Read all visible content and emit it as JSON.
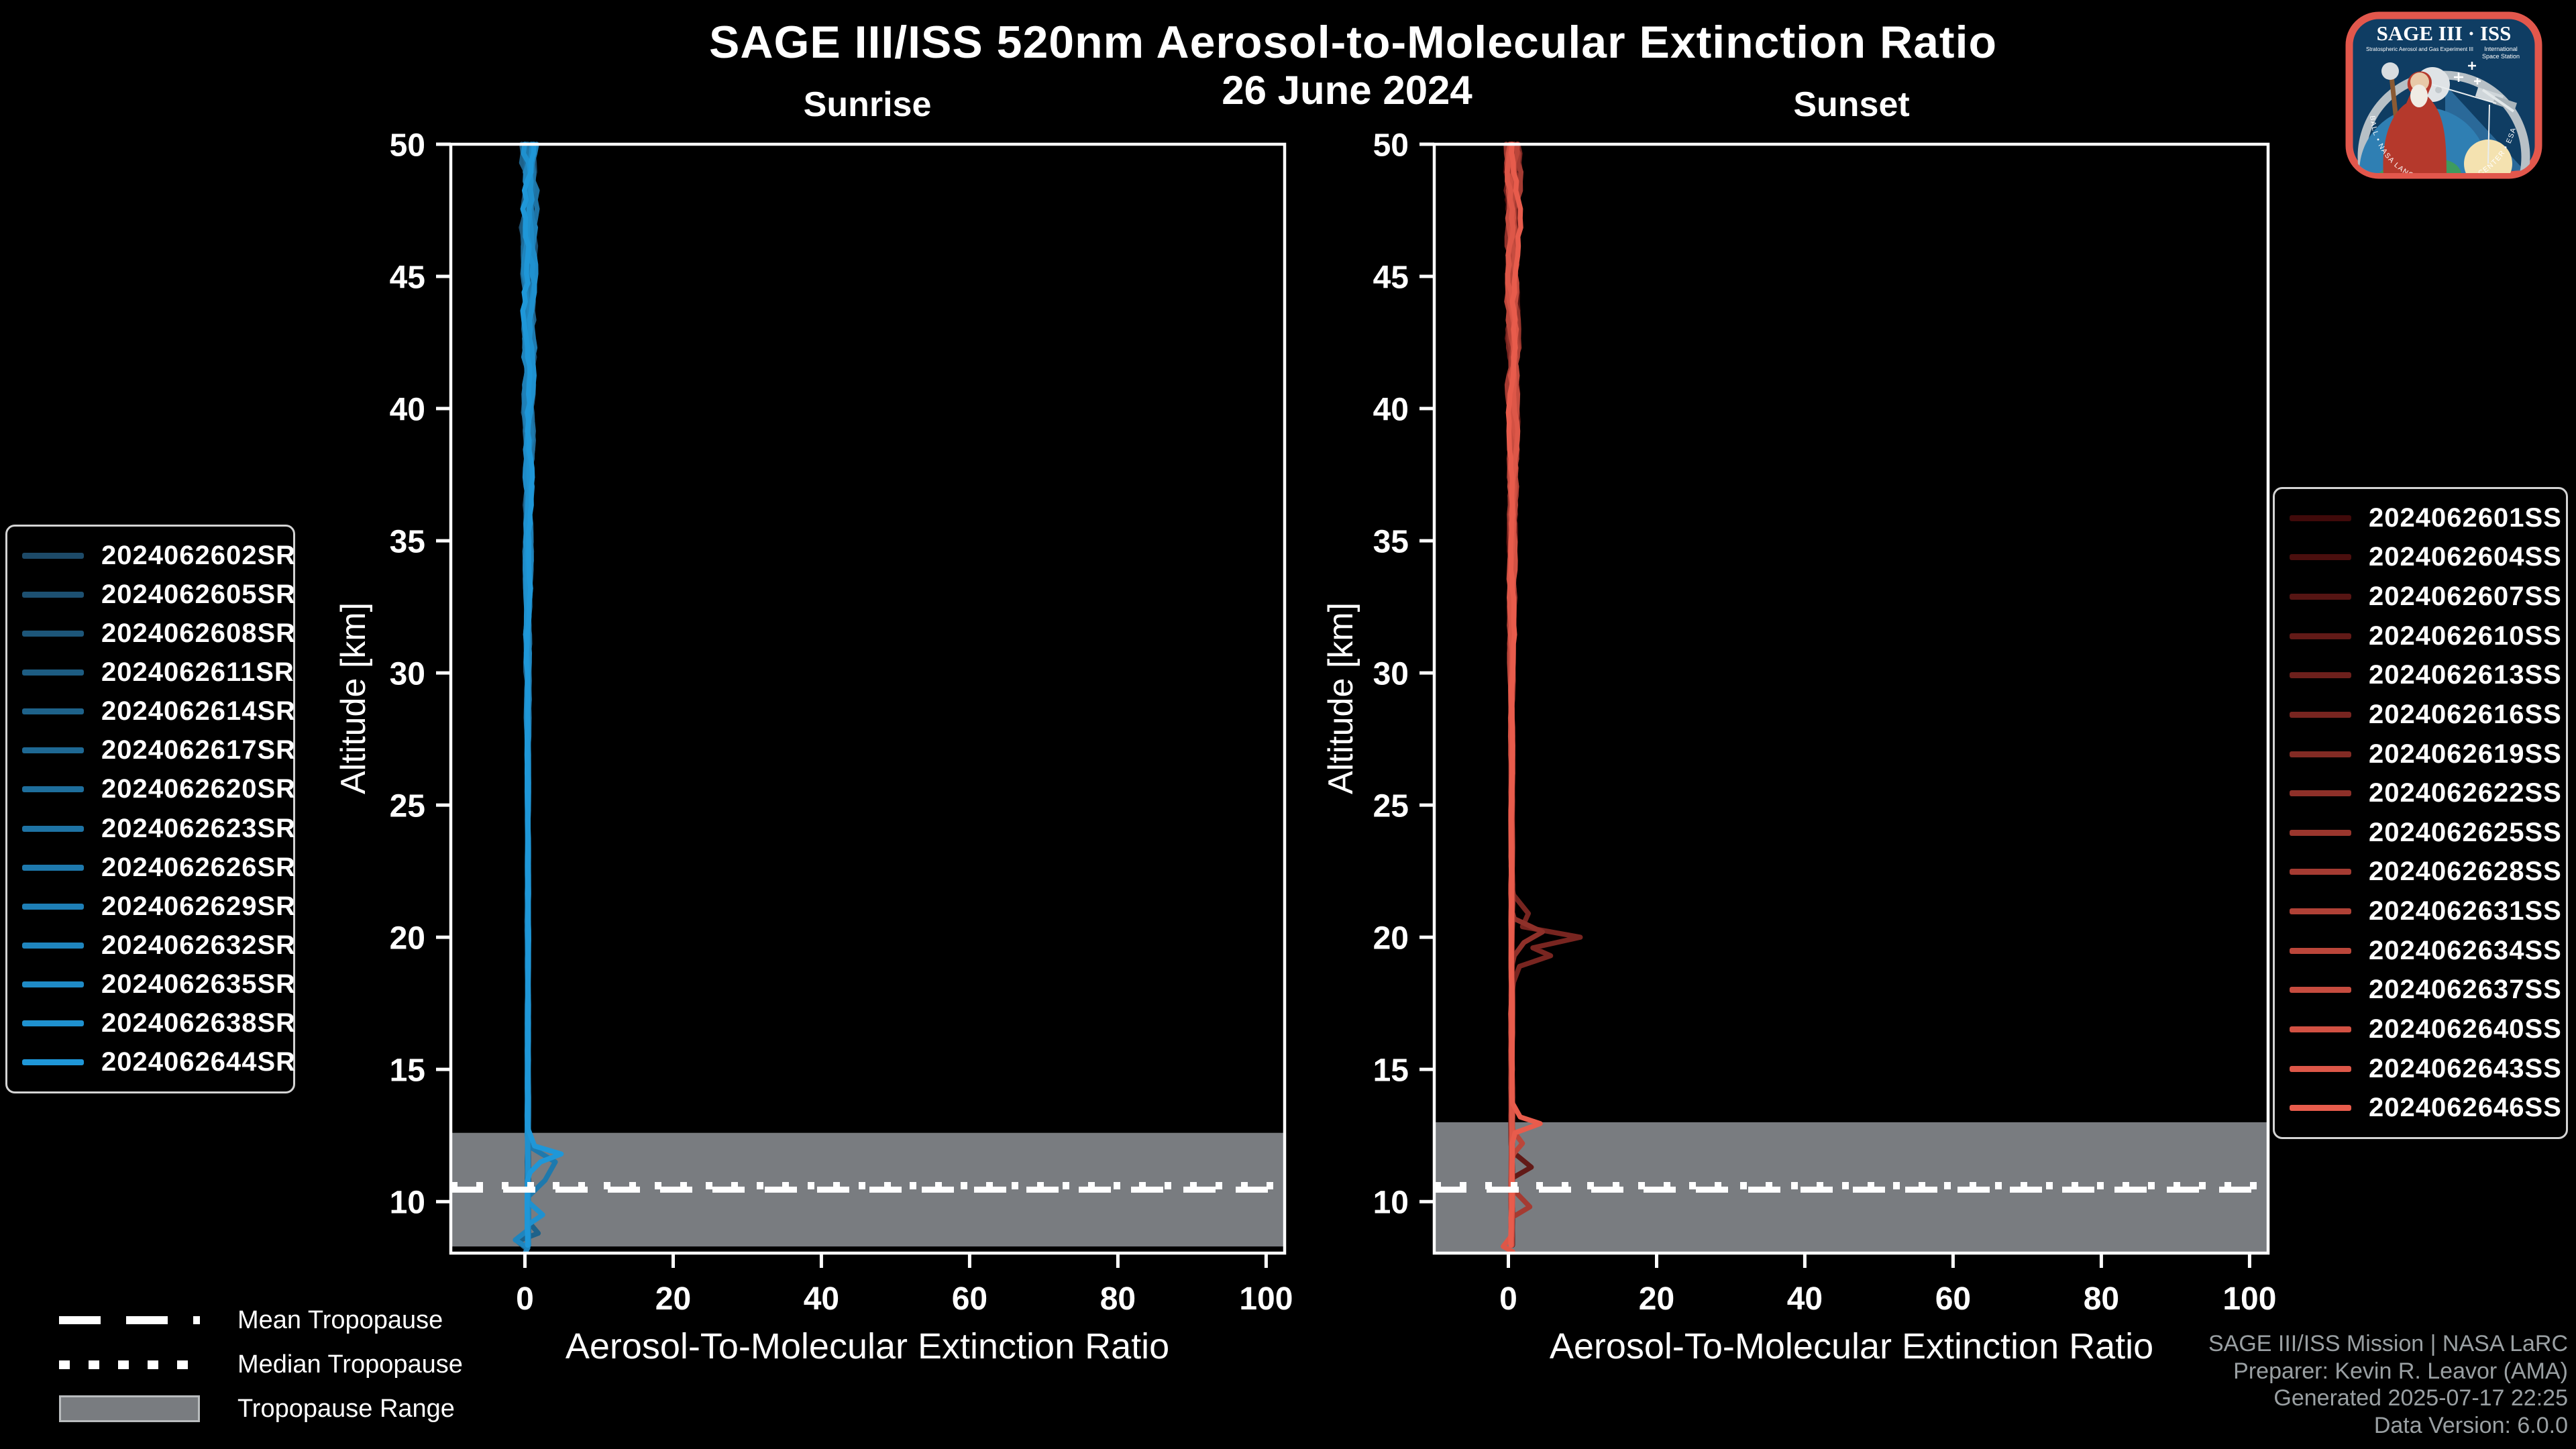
{
  "figure": {
    "title": "SAGE III/ISS 520nm Aerosol-to-Molecular Extinction Ratio",
    "date": "26 June 2024",
    "background": "#000000"
  },
  "style": {
    "band_color": "#797c80",
    "axis_color": "#ffffff",
    "text_color": "#ffffff",
    "footer_color": "#9aa0a3",
    "legend_border": "#d4d4d4"
  },
  "logo": {
    "title": "SAGE III · ISS",
    "subtitle_left": "Stratospheric Aerosol and Gas Experiment III",
    "subtitle_right_1": "International",
    "subtitle_right_2": "Space Station",
    "ring_text": "BALL • NASA LANGLEY RESEARCH CENTER • ESA",
    "border_color": "#e2574c",
    "field_color": "#0f3d63"
  },
  "tropopause_legend": {
    "mean": "Mean Tropopause",
    "median": "Median Tropopause",
    "range": "Tropopause Range"
  },
  "footer": {
    "line1": "SAGE III/ISS Mission | NASA LaRC",
    "line2": "Preparer: Kevin R. Leavor (AMA)",
    "line3": "Generated 2025-07-17 22:25",
    "line4": "Data Version: 6.0.0"
  },
  "chart_data": [
    {
      "type": "line",
      "panel": "sunrise",
      "title": "Sunrise",
      "xlabel": "Aerosol-To-Molecular Extinction Ratio",
      "ylabel": "Altitude [km]",
      "xlim": [
        -10,
        102.5
      ],
      "ylim": [
        8.05,
        50
      ],
      "xticks": [
        0,
        20,
        40,
        60,
        80,
        100
      ],
      "yticks": [
        10,
        15,
        20,
        25,
        30,
        35,
        40,
        45,
        50
      ],
      "grid": false,
      "legend_position": "left-outside",
      "color_start": "#1d4a68",
      "color_end": "#1f97d8",
      "events": [
        "2024062602SR",
        "2024062605SR",
        "2024062608SR",
        "2024062611SR",
        "2024062614SR",
        "2024062617SR",
        "2024062620SR",
        "2024062623SR",
        "2024062626SR",
        "2024062629SR",
        "2024062632SR",
        "2024062635SR",
        "2024062638SR",
        "2024062644SR"
      ],
      "bundle": {
        "base": 0.4,
        "base_slope": 0.012,
        "amp_low": 0.1,
        "amp_top": 0.9,
        "amp_start": 26,
        "note": "profiles hover near ratio 0-1 from 50 km down to tropopause, spread widens above ~30 km"
      },
      "features": [
        {
          "event": 13,
          "pts": [
            [
              12.7,
              0.5
            ],
            [
              12.1,
              1.3
            ],
            [
              11.8,
              4.9
            ],
            [
              11.5,
              2.1
            ],
            [
              11.1,
              0.7
            ]
          ]
        },
        {
          "event": 8,
          "pts": [
            [
              12.1,
              0.5
            ],
            [
              11.5,
              4.1
            ],
            [
              10.8,
              2.7
            ],
            [
              10.2,
              0.5
            ]
          ]
        },
        {
          "event": 12,
          "pts": [
            [
              10.0,
              0.4
            ],
            [
              9.5,
              2.4
            ],
            [
              9.1,
              0.3
            ]
          ]
        },
        {
          "event": 4,
          "pts": [
            [
              9.3,
              0.3
            ],
            [
              8.8,
              1.8
            ],
            [
              8.5,
              -1.0
            ],
            [
              8.2,
              0.3
            ]
          ]
        },
        {
          "event": 10,
          "pts": [
            [
              8.9,
              0.3
            ],
            [
              8.55,
              -1.3
            ],
            [
              8.25,
              0.4
            ],
            [
              8.1,
              0.1
            ]
          ]
        }
      ],
      "tropopause": {
        "mean_km": 10.45,
        "median_km": 10.6,
        "range_km": [
          8.3,
          12.6
        ]
      }
    },
    {
      "type": "line",
      "panel": "sunset",
      "title": "Sunset",
      "xlabel": "Aerosol-To-Molecular Extinction Ratio",
      "ylabel": "Altitude [km]",
      "xlim": [
        -10,
        102.5
      ],
      "ylim": [
        8.05,
        50
      ],
      "xticks": [
        0,
        20,
        40,
        60,
        80,
        100
      ],
      "yticks": [
        10,
        15,
        20,
        25,
        30,
        35,
        40,
        45,
        50
      ],
      "grid": false,
      "legend_position": "right-outside",
      "color_start": "#400a0a",
      "color_end": "#e85c4c",
      "events": [
        "2024062601SS",
        "2024062604SS",
        "2024062607SS",
        "2024062610SS",
        "2024062613SS",
        "2024062616SS",
        "2024062619SS",
        "2024062622SS",
        "2024062625SS",
        "2024062628SS",
        "2024062631SS",
        "2024062634SS",
        "2024062637SS",
        "2024062640SS",
        "2024062643SS",
        "2024062646SS"
      ],
      "bundle": {
        "base": 0.45,
        "base_slope": 0.014,
        "amp_low": 0.12,
        "amp_top": 0.85,
        "amp_start": 26,
        "note": "profiles hover near ratio 0-1; dark-red enhancement peaking ~10 near 20 km; salmon spike ~4 near 13 km"
      },
      "features": [
        {
          "event": 5,
          "pts": [
            [
              21.6,
              0.7
            ],
            [
              20.9,
              2.7
            ],
            [
              20.4,
              1.9
            ],
            [
              20.0,
              9.7
            ],
            [
              19.6,
              3.3
            ],
            [
              19.3,
              5.7
            ],
            [
              18.9,
              1.5
            ],
            [
              18.3,
              0.7
            ]
          ]
        },
        {
          "event": 7,
          "pts": [
            [
              20.7,
              0.8
            ],
            [
              20.2,
              4.6
            ],
            [
              19.8,
              2.1
            ],
            [
              19.3,
              0.8
            ]
          ]
        },
        {
          "event": 15,
          "pts": [
            [
              13.7,
              0.6
            ],
            [
              13.2,
              1.6
            ],
            [
              12.95,
              4.3
            ],
            [
              12.6,
              0.9
            ]
          ]
        },
        {
          "event": 11,
          "pts": [
            [
              12.7,
              0.6
            ],
            [
              12.2,
              1.9
            ],
            [
              11.8,
              0.7
            ]
          ]
        },
        {
          "event": 3,
          "pts": [
            [
              11.9,
              0.5
            ],
            [
              11.3,
              3.1
            ],
            [
              10.9,
              0.6
            ]
          ]
        },
        {
          "event": 9,
          "pts": [
            [
              10.5,
              0.5
            ],
            [
              9.8,
              2.9
            ],
            [
              9.4,
              0.5
            ]
          ]
        },
        {
          "event": 14,
          "pts": [
            [
              8.7,
              0.4
            ],
            [
              8.3,
              -0.7
            ],
            [
              8.1,
              0.6
            ]
          ]
        }
      ],
      "tropopause": {
        "mean_km": 10.45,
        "median_km": 10.6,
        "range_km": [
          8.1,
          13.0
        ]
      }
    }
  ]
}
